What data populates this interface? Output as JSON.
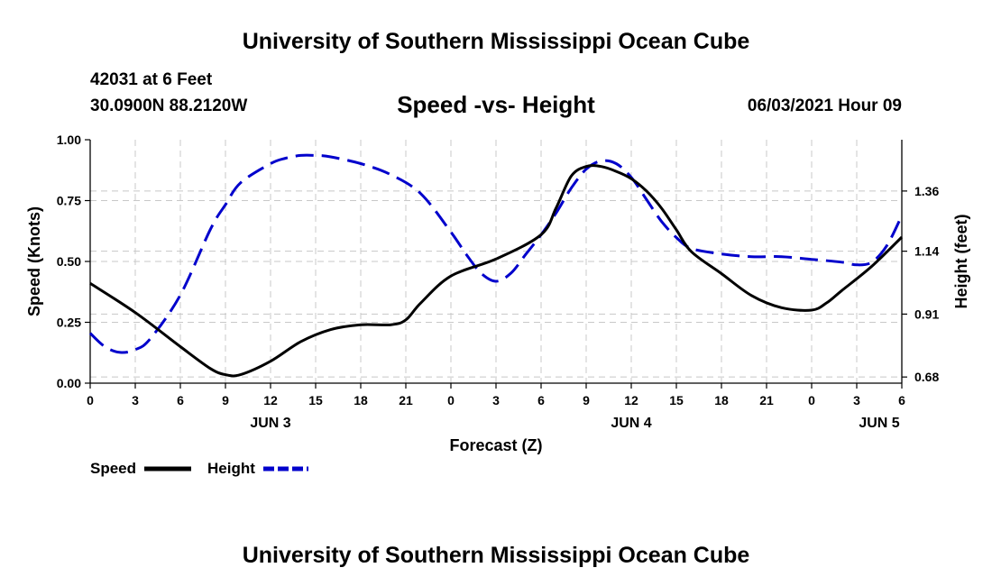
{
  "header": {
    "title": "University of Southern Mississippi Ocean Cube",
    "station": "42031 at 6 Feet",
    "coords": "30.0900N  88.2120W",
    "datetime": "06/03/2021 Hour 09"
  },
  "footer": {
    "title": "University of Southern Mississippi Ocean Cube"
  },
  "chart_data": {
    "type": "line",
    "title": "Speed -vs- Height",
    "xlabel": "Forecast (Z)",
    "ylabel": "Speed (Knots)",
    "y2label": "Height (feet)",
    "x_unit": "hours since JUN 3 00Z",
    "xlim": [
      0,
      54
    ],
    "ylim": [
      0,
      1
    ],
    "y2lim": [
      0.6575,
      1.5475
    ],
    "x_ticks": [
      0,
      3,
      6,
      9,
      12,
      15,
      18,
      21,
      24,
      27,
      30,
      33,
      36,
      39,
      42,
      45,
      48,
      51,
      54
    ],
    "x_tick_labels": [
      "0",
      "3",
      "6",
      "9",
      "12",
      "15",
      "18",
      "21",
      "0",
      "3",
      "6",
      "9",
      "12",
      "15",
      "18",
      "21",
      "0",
      "3",
      "6"
    ],
    "date_labels": [
      {
        "x": 12,
        "label": "JUN 3"
      },
      {
        "x": 36,
        "label": "JUN 4"
      },
      {
        "x": 52.5,
        "label": "JUN 5"
      }
    ],
    "y_ticks": [
      0,
      0.25,
      0.5,
      0.75,
      1.0
    ],
    "y_tick_labels": [
      "0.00",
      "0.25",
      "0.50",
      "0.75",
      "1.00"
    ],
    "y2_ticks": [
      0.68,
      0.91,
      1.14,
      1.36
    ],
    "y2_tick_labels": [
      "0.68",
      "0.91",
      "1.14",
      "1.36"
    ],
    "colors": {
      "speed": "#000000",
      "height": "#0000cc",
      "grid": "#c8c8c8"
    },
    "legend": {
      "speed_label": "Speed",
      "height_label": "Height",
      "placement": "bottom-left"
    },
    "series": [
      {
        "name": "Speed",
        "axis": "left",
        "style": "solid",
        "x": [
          0,
          3,
          6,
          8,
          9,
          10,
          12,
          14,
          16,
          18,
          20,
          21,
          22,
          24,
          27,
          30,
          31,
          32,
          33,
          34,
          35,
          36,
          37,
          38,
          39,
          40,
          42,
          44,
          46,
          48,
          49,
          50,
          52,
          54
        ],
        "y": [
          0.41,
          0.29,
          0.15,
          0.06,
          0.035,
          0.035,
          0.09,
          0.17,
          0.22,
          0.24,
          0.24,
          0.26,
          0.33,
          0.44,
          0.51,
          0.61,
          0.72,
          0.85,
          0.89,
          0.89,
          0.87,
          0.84,
          0.79,
          0.72,
          0.63,
          0.54,
          0.45,
          0.36,
          0.31,
          0.3,
          0.33,
          0.38,
          0.48,
          0.6
        ]
      },
      {
        "name": "Height",
        "axis": "right",
        "style": "dashed",
        "x": [
          0,
          1,
          2,
          3,
          4,
          6,
          8,
          9,
          10,
          12,
          13,
          14,
          15,
          16,
          18,
          20,
          22,
          24,
          25,
          26,
          27,
          28,
          29,
          30,
          31,
          32,
          33,
          34,
          35,
          36,
          37,
          38,
          39,
          40,
          42,
          44,
          46,
          48,
          50,
          51,
          52,
          53,
          54
        ],
        "y": [
          0.84,
          0.79,
          0.77,
          0.78,
          0.82,
          0.98,
          1.22,
          1.31,
          1.39,
          1.46,
          1.48,
          1.49,
          1.49,
          1.485,
          1.46,
          1.42,
          1.35,
          1.21,
          1.13,
          1.06,
          1.03,
          1.06,
          1.13,
          1.2,
          1.28,
          1.37,
          1.44,
          1.47,
          1.46,
          1.41,
          1.33,
          1.25,
          1.19,
          1.15,
          1.13,
          1.12,
          1.12,
          1.11,
          1.1,
          1.09,
          1.1,
          1.16,
          1.27
        ]
      }
    ]
  }
}
